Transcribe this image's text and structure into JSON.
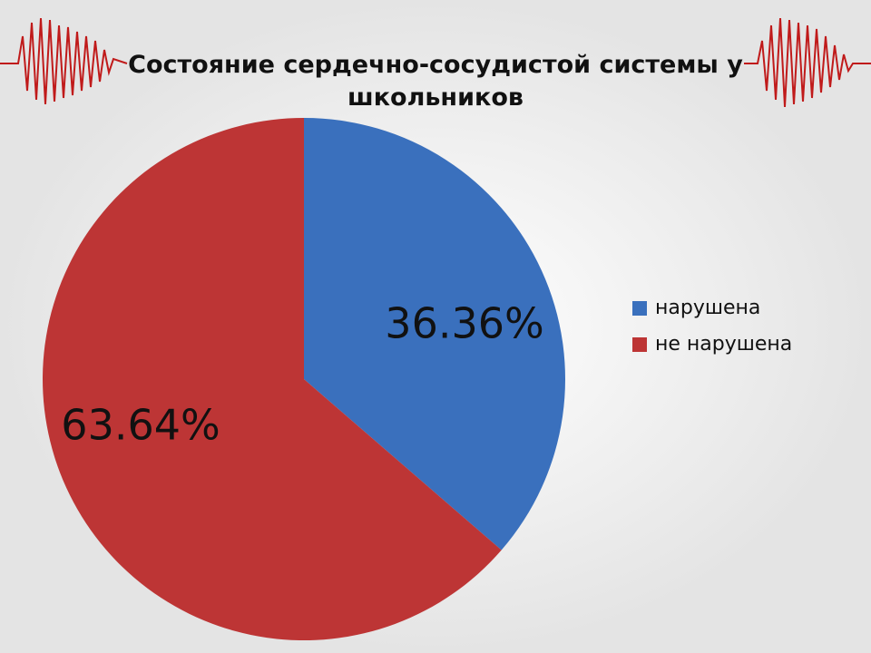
{
  "chart_data": {
    "type": "pie",
    "title": "Состояние сердечно-сосудистой системы у школьников",
    "categories": [
      "нарушена",
      "не нарушена"
    ],
    "values": [
      36.36,
      63.64
    ],
    "value_labels": [
      "36.36%",
      "63.64%"
    ],
    "colors": [
      "#3a70bd",
      "#bd3535"
    ],
    "legend": "right"
  }
}
